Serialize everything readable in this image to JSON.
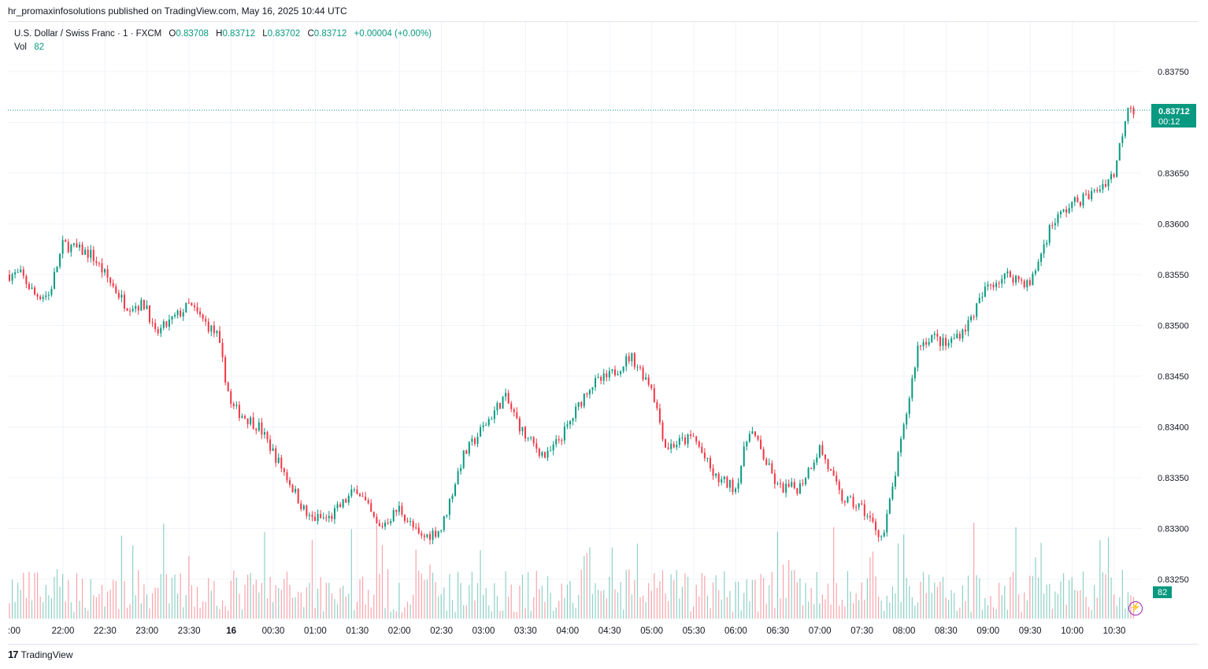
{
  "publish_line": "hr_promaxinfosolutions published on TradingView.com, May 16, 2025 10:44 UTC",
  "legend": {
    "symbol": "U.S. Dollar / Swiss Franc · 1 · FXCM",
    "open_label": "O",
    "open": "0.83708",
    "high_label": "H",
    "high": "0.83712",
    "low_label": "L",
    "low": "0.83702",
    "close_label": "C",
    "close": "0.83712",
    "change": "+0.00004 (+0.00%)",
    "vol_label": "Vol",
    "vol": "82"
  },
  "price_tag": {
    "price": "0.83712",
    "countdown": "00:12"
  },
  "volume_tag": "82",
  "brand": "TradingView",
  "colors": {
    "up": "#089981",
    "down": "#f23645",
    "accent": "#089981",
    "grid": "#f0f3fa"
  },
  "chart_data": {
    "type": "candlestick",
    "ylim": [
      0.83205,
      0.83785
    ],
    "y_ticks": [
      "0.83750",
      "0.83700",
      "0.83650",
      "0.83600",
      "0.83550",
      "0.83500",
      "0.83450",
      "0.83400",
      "0.83350",
      "0.83300",
      "0.83250"
    ],
    "x_ticks": [
      ":00",
      "22:00",
      "22:30",
      "23:00",
      "23:30",
      "16",
      "00:30",
      "01:00",
      "01:30",
      "02:00",
      "02:30",
      "03:00",
      "03:30",
      "04:00",
      "04:30",
      "05:00",
      "05:30",
      "06:00",
      "06:30",
      "07:00",
      "07:30",
      "08:00",
      "08:30",
      "09:00",
      "09:30",
      "10:00",
      "10:30"
    ],
    "current_price": 0.83712,
    "price_path": [
      {
        "t": "21:30",
        "p": 0.8355
      },
      {
        "t": "21:40",
        "p": 0.8353
      },
      {
        "t": "21:50",
        "p": 0.8353
      },
      {
        "t": "22:00",
        "p": 0.8358
      },
      {
        "t": "22:20",
        "p": 0.8357
      },
      {
        "t": "22:45",
        "p": 0.8352
      },
      {
        "t": "23:00",
        "p": 0.8352
      },
      {
        "t": "23:05",
        "p": 0.8349
      },
      {
        "t": "23:30",
        "p": 0.8352
      },
      {
        "t": "23:50",
        "p": 0.8349
      },
      {
        "t": "00:00",
        "p": 0.8342
      },
      {
        "t": "00:20",
        "p": 0.834
      },
      {
        "t": "00:40",
        "p": 0.8335
      },
      {
        "t": "00:55",
        "p": 0.8331
      },
      {
        "t": "01:10",
        "p": 0.8331
      },
      {
        "t": "01:30",
        "p": 0.8334
      },
      {
        "t": "01:45",
        "p": 0.833
      },
      {
        "t": "02:00",
        "p": 0.8332
      },
      {
        "t": "02:15",
        "p": 0.8329
      },
      {
        "t": "02:30",
        "p": 0.833
      },
      {
        "t": "02:45",
        "p": 0.8337
      },
      {
        "t": "03:00",
        "p": 0.834
      },
      {
        "t": "03:15",
        "p": 0.8343
      },
      {
        "t": "03:30",
        "p": 0.8339
      },
      {
        "t": "03:45",
        "p": 0.8337
      },
      {
        "t": "04:00",
        "p": 0.834
      },
      {
        "t": "04:15",
        "p": 0.8344
      },
      {
        "t": "04:30",
        "p": 0.8345
      },
      {
        "t": "04:45",
        "p": 0.8347
      },
      {
        "t": "05:00",
        "p": 0.8344
      },
      {
        "t": "05:10",
        "p": 0.8338
      },
      {
        "t": "05:30",
        "p": 0.8339
      },
      {
        "t": "05:45",
        "p": 0.8335
      },
      {
        "t": "06:00",
        "p": 0.8334
      },
      {
        "t": "06:10",
        "p": 0.834
      },
      {
        "t": "06:30",
        "p": 0.8334
      },
      {
        "t": "06:45",
        "p": 0.8334
      },
      {
        "t": "07:00",
        "p": 0.8338
      },
      {
        "t": "07:15",
        "p": 0.8333
      },
      {
        "t": "07:30",
        "p": 0.8332
      },
      {
        "t": "07:45",
        "p": 0.8329
      },
      {
        "t": "08:00",
        "p": 0.834
      },
      {
        "t": "08:10",
        "p": 0.8348
      },
      {
        "t": "08:20",
        "p": 0.8349
      },
      {
        "t": "08:30",
        "p": 0.8348
      },
      {
        "t": "08:45",
        "p": 0.835
      },
      {
        "t": "09:00",
        "p": 0.8354
      },
      {
        "t": "09:15",
        "p": 0.8355
      },
      {
        "t": "09:30",
        "p": 0.8354
      },
      {
        "t": "09:45",
        "p": 0.836
      },
      {
        "t": "10:00",
        "p": 0.8362
      },
      {
        "t": "10:15",
        "p": 0.8363
      },
      {
        "t": "10:30",
        "p": 0.8365
      },
      {
        "t": "10:40",
        "p": 0.8372
      },
      {
        "t": "10:44",
        "p": 0.83712
      }
    ]
  }
}
